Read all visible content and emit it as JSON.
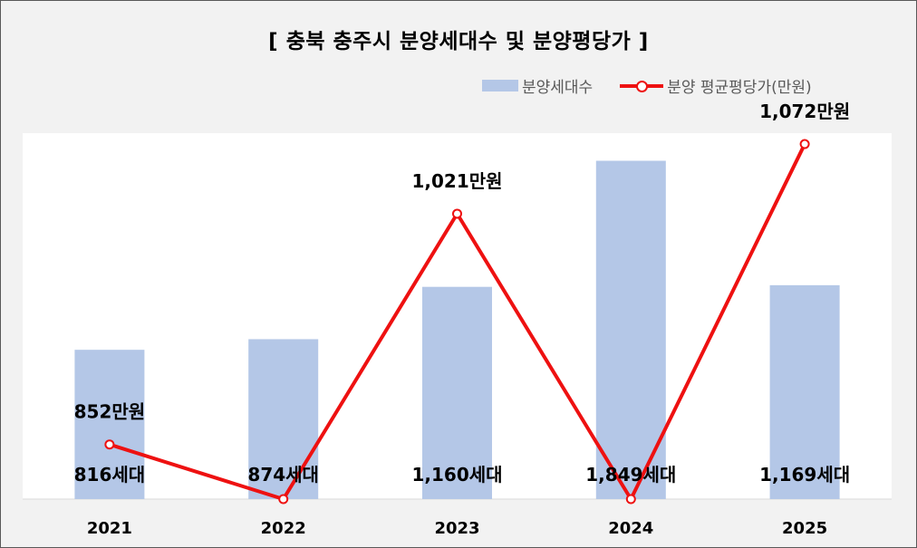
{
  "title": "[ 충북 충주시 분양세대수 및 분양평당가 ]",
  "legend": {
    "bar_label": "분양세대수",
    "line_label": "분양 평균평당가(만원)"
  },
  "colors": {
    "bar": "#b4c7e7",
    "line": "#ee1111",
    "plot_bg": "#ffffff",
    "outer_bg": "#f2f2f2"
  },
  "chart_data": {
    "type": "bar",
    "title": "[ 충북 충주시 분양세대수 및 분양평당가 ]",
    "categories": [
      "2021",
      "2022",
      "2023",
      "2024",
      "2025"
    ],
    "series": [
      {
        "name": "분양세대수",
        "type": "bar",
        "values": [
          816,
          874,
          1160,
          1849,
          1169
        ],
        "labels": [
          "816세대",
          "874세대",
          "1,160세대",
          "1,849세대",
          "1,169세대"
        ]
      },
      {
        "name": "분양 평균평당가(만원)",
        "type": "line",
        "values": [
          852,
          812,
          1021,
          812,
          1072
        ],
        "labels": [
          "852만원",
          "",
          "1,021만원",
          "",
          "1,072만원"
        ]
      }
    ],
    "bar_ylim": [
      0,
      2000
    ],
    "line_ylim": [
      812,
      1080
    ],
    "legend_position": "top-right",
    "grid": false
  }
}
